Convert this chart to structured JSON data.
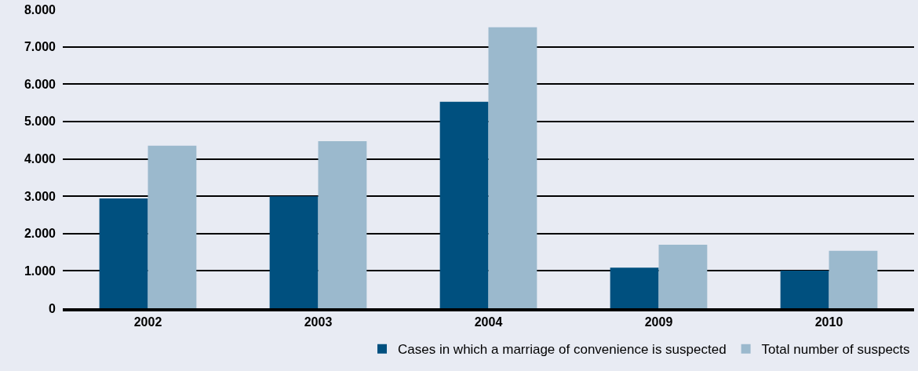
{
  "chart_data": {
    "type": "bar",
    "categories": [
      "2002",
      "2003",
      "2004",
      "2009",
      "2010"
    ],
    "series": [
      {
        "name": "Cases in which a marriage of convenience is suspected",
        "color": "#00507f",
        "values": [
          2940,
          3000,
          5530,
          1085,
          1010
        ]
      },
      {
        "name": "Total number of suspects",
        "color": "#9bb9cd",
        "values": [
          4350,
          4470,
          7520,
          1700,
          1540
        ]
      }
    ],
    "ylim": [
      0,
      8000
    ],
    "yticks": [
      {
        "value": 0,
        "label": "0"
      },
      {
        "value": 1000,
        "label": "1.000"
      },
      {
        "value": 2000,
        "label": "2.000"
      },
      {
        "value": 3000,
        "label": "3.000"
      },
      {
        "value": 4000,
        "label": "4.000"
      },
      {
        "value": 5000,
        "label": "5.000"
      },
      {
        "value": 6000,
        "label": "6.000"
      },
      {
        "value": 7000,
        "label": "7.000"
      },
      {
        "value": 8000,
        "label": "8.000"
      }
    ],
    "grid": "y",
    "legend": "bottom right"
  }
}
